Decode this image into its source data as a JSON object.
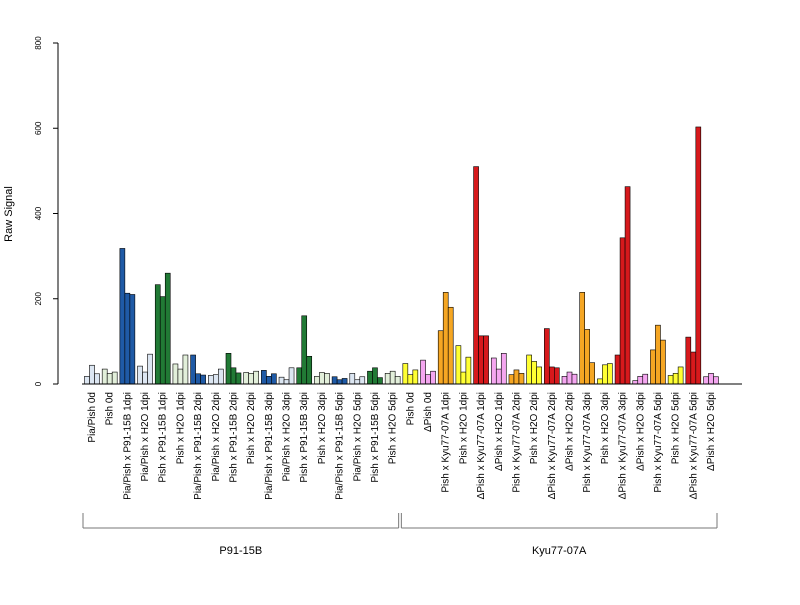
{
  "chart_data": {
    "type": "bar",
    "title": "",
    "xlabel": "",
    "ylabel": "Raw Signal",
    "ylim": [
      0,
      800
    ],
    "yticks": [
      0,
      200,
      400,
      600,
      800
    ],
    "grid": false,
    "legend": "none",
    "palette": {
      "light_blue": "#dce6f2",
      "blue": "#1f5aa6",
      "light_green": "#e2efda",
      "green": "#217a35",
      "yellow": "#ffff33",
      "pink": "#f4a6f0",
      "orange": "#f5a623",
      "red": "#d7191c"
    },
    "categories": [
      {
        "label": "Pia/Pish 0d",
        "color": "light_blue",
        "values": [
          18,
          44,
          24
        ]
      },
      {
        "label": "Pish 0d",
        "color": "light_green",
        "values": [
          35,
          25,
          28
        ]
      },
      {
        "label": "Pia/Pish x P91-15B 1dpi",
        "color": "blue",
        "values": [
          318,
          213,
          210
        ]
      },
      {
        "label": "Pia/Pish x H2O 1dpi",
        "color": "light_blue",
        "values": [
          42,
          28,
          70
        ]
      },
      {
        "label": "Pish x P91-15B 1dpi",
        "color": "green",
        "values": [
          233,
          205,
          260
        ]
      },
      {
        "label": "Pish x H2O 1dpi",
        "color": "light_green",
        "values": [
          47,
          35,
          68
        ]
      },
      {
        "label": "Pia/Pish x P91-15B 2dpi",
        "color": "blue",
        "values": [
          68,
          24,
          21
        ]
      },
      {
        "label": "Pia/Pish x H2O 2dpi",
        "color": "light_blue",
        "values": [
          20,
          22,
          35
        ]
      },
      {
        "label": "Pish x P91-15B 2dpi",
        "color": "green",
        "values": [
          72,
          38,
          26
        ]
      },
      {
        "label": "Pish x H2O 2dpi",
        "color": "light_green",
        "values": [
          27,
          25,
          30
        ]
      },
      {
        "label": "Pia/Pish x P91-15B 3dpi",
        "color": "blue",
        "values": [
          32,
          18,
          24
        ]
      },
      {
        "label": "Pia/Pish x H2O 3dpi",
        "color": "light_blue",
        "values": [
          16,
          10,
          38
        ]
      },
      {
        "label": "Pish x P91-15B 3dpi",
        "color": "green",
        "values": [
          38,
          160,
          65
        ]
      },
      {
        "label": "Pish x H2O 3dpi",
        "color": "light_green",
        "values": [
          18,
          27,
          25
        ]
      },
      {
        "label": "Pia/Pish x P91-15B 5dpi",
        "color": "blue",
        "values": [
          17,
          10,
          13
        ]
      },
      {
        "label": "Pia/Pish x H2O 5dpi",
        "color": "light_blue",
        "values": [
          25,
          10,
          17
        ]
      },
      {
        "label": "Pish x P91-15B 5dpi",
        "color": "green",
        "values": [
          30,
          38,
          15
        ]
      },
      {
        "label": "Pish x H2O 5dpi",
        "color": "light_green",
        "values": [
          25,
          30,
          18
        ]
      },
      {
        "label": "Pish 0d",
        "color": "yellow",
        "values": [
          48,
          22,
          33
        ]
      },
      {
        "label": "ΔPish 0d",
        "color": "pink",
        "values": [
          56,
          22,
          30
        ]
      },
      {
        "label": "Pish x Kyu77-07A 1dpi",
        "color": "orange",
        "values": [
          125,
          215,
          180
        ]
      },
      {
        "label": "Pish x H2O 1dpi",
        "color": "yellow",
        "values": [
          90,
          28,
          63
        ]
      },
      {
        "label": "ΔPish x Kyu77-07A 1dpi",
        "color": "red",
        "values": [
          510,
          113,
          113
        ]
      },
      {
        "label": "ΔPish x H2O 1dpi",
        "color": "pink",
        "values": [
          61,
          35,
          72
        ]
      },
      {
        "label": "Pish x Kyu77-07A 2dpi",
        "color": "orange",
        "values": [
          22,
          33,
          25
        ]
      },
      {
        "label": "Pish x H2O 2dpi",
        "color": "yellow",
        "values": [
          68,
          53,
          40
        ]
      },
      {
        "label": "ΔPish x Kyu77-07A 2dpi",
        "color": "red",
        "values": [
          130,
          40,
          38
        ]
      },
      {
        "label": "ΔPish x H2O 2dpi",
        "color": "pink",
        "values": [
          18,
          28,
          23
        ]
      },
      {
        "label": "Pish x Kyu77-07A 3dpi",
        "color": "orange",
        "values": [
          215,
          128,
          50
        ]
      },
      {
        "label": "Pish x H2O 3dpi",
        "color": "yellow",
        "values": [
          12,
          45,
          48
        ]
      },
      {
        "label": "ΔPish x Kyu77-07A 3dpi",
        "color": "red",
        "values": [
          68,
          343,
          463
        ]
      },
      {
        "label": "ΔPish x H2O 3dpi",
        "color": "pink",
        "values": [
          8,
          18,
          23
        ]
      },
      {
        "label": "Pish x Kyu77-07A 5dpi",
        "color": "orange",
        "values": [
          80,
          138,
          103
        ]
      },
      {
        "label": "Pish x H2O 5dpi",
        "color": "yellow",
        "values": [
          20,
          25,
          40
        ]
      },
      {
        "label": "ΔPish x Kyu77-07A 5dpi",
        "color": "red",
        "values": [
          110,
          75,
          603
        ]
      },
      {
        "label": "ΔPish x H2O 5dpi",
        "color": "pink",
        "values": [
          17,
          25,
          17
        ]
      }
    ],
    "groups": [
      {
        "label": "P91-15B",
        "from": 0,
        "to": 17
      },
      {
        "label": "Kyu77-07A",
        "from": 18,
        "to": 35
      }
    ]
  }
}
